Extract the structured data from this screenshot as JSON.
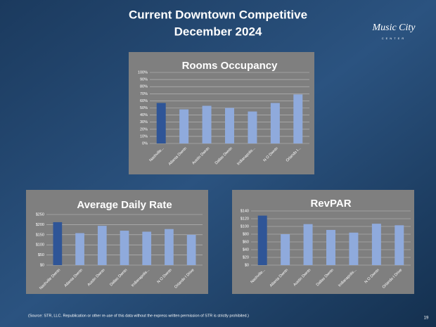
{
  "slide": {
    "title": "Current Downtown Competitive",
    "subtitle": "December 2024",
    "logo": "Music City",
    "logo_sub": "CENTER",
    "source": "(Source: STR, LLC. Republication or other re-use of this data without the express written permission of STR is strictly prohibited.)",
    "page": "19"
  },
  "chart_data": [
    {
      "type": "bar",
      "title": "Rooms Occupancy",
      "categories": [
        "Nashville...",
        "Atlanta Dwntn",
        "Austin Dwntn",
        "Dallas Dwntn",
        "Indianapolis...",
        "N O Dwntn",
        "Orlando I..."
      ],
      "values": [
        57,
        48,
        53,
        50,
        45,
        57,
        69
      ],
      "colors": [
        "#2f5597",
        "#8faadc",
        "#8faadc",
        "#8faadc",
        "#8faadc",
        "#8faadc",
        "#8faadc"
      ],
      "ylim": [
        0,
        100
      ],
      "yticks": [
        {
          "value": 0,
          "label": "0%"
        },
        {
          "value": 10,
          "label": "10%"
        },
        {
          "value": 20,
          "label": "20%"
        },
        {
          "value": 30,
          "label": "30%"
        },
        {
          "value": 40,
          "label": "40%"
        },
        {
          "value": 50,
          "label": "50%"
        },
        {
          "value": 60,
          "label": "60%"
        },
        {
          "value": 70,
          "label": "70%"
        },
        {
          "value": 80,
          "label": "80%"
        },
        {
          "value": 90,
          "label": "90%"
        },
        {
          "value": 100,
          "label": "100%"
        }
      ],
      "grid": true
    },
    {
      "type": "bar",
      "title": "Average Daily Rate",
      "categories": [
        "Nashville Dwntn",
        "Atlanta Dwntn",
        "Austin Dwntn",
        "Dallas Dwntn",
        "Indianapolis...",
        "N O Dwntn",
        "Orlando I Drive"
      ],
      "values": [
        212,
        158,
        194,
        170,
        165,
        178,
        150
      ],
      "colors": [
        "#2f5597",
        "#8faadc",
        "#8faadc",
        "#8faadc",
        "#8faadc",
        "#8faadc",
        "#8faadc"
      ],
      "ylim": [
        0,
        250
      ],
      "yticks": [
        {
          "value": 0,
          "label": "$0"
        },
        {
          "value": 50,
          "label": "$50"
        },
        {
          "value": 100,
          "label": "$100"
        },
        {
          "value": 150,
          "label": "$150"
        },
        {
          "value": 200,
          "label": "$200"
        },
        {
          "value": 250,
          "label": "$250"
        }
      ],
      "grid": true
    },
    {
      "type": "bar",
      "title": "RevPAR",
      "categories": [
        "Nashville...",
        "Atlanta Dwntn",
        "Austin Dwntn",
        "Dallas Dwntn",
        "Indianapolis...",
        "N O Dwntn",
        "Orlando I Drive"
      ],
      "values": [
        128,
        80,
        106,
        91,
        84,
        107,
        103
      ],
      "colors": [
        "#2f5597",
        "#8faadc",
        "#8faadc",
        "#8faadc",
        "#8faadc",
        "#8faadc",
        "#8faadc"
      ],
      "ylim": [
        0,
        140
      ],
      "yticks": [
        {
          "value": 0,
          "label": "$0"
        },
        {
          "value": 20,
          "label": "$20"
        },
        {
          "value": 40,
          "label": "$40"
        },
        {
          "value": 60,
          "label": "$60"
        },
        {
          "value": 80,
          "label": "$80"
        },
        {
          "value": 100,
          "label": "$100"
        },
        {
          "value": 120,
          "label": "$120"
        },
        {
          "value": 140,
          "label": "$140"
        }
      ],
      "grid": true
    }
  ]
}
